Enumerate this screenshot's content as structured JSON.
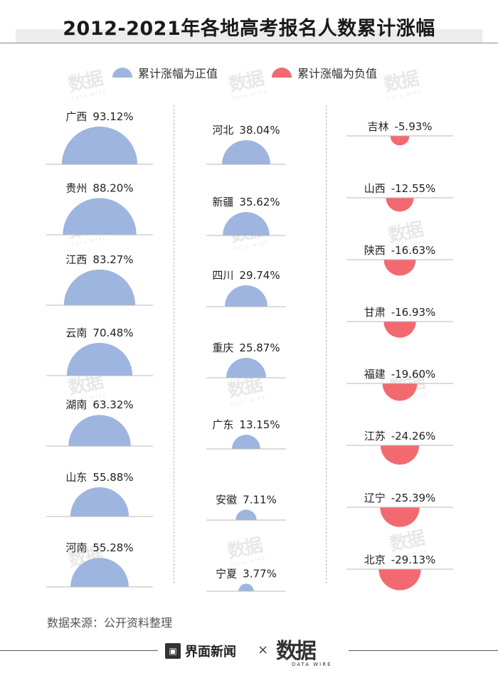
{
  "title": "2012-2021年各地高考报名人数累计涨幅",
  "legend": {
    "positive_label": "累计涨幅为正值",
    "negative_label": "累计涨幅为负值"
  },
  "colors": {
    "positive": "#9db5df",
    "negative": "#f26a6f",
    "baseline": "#b9b9b9"
  },
  "watermark_text": "数据",
  "watermark_sub": "DATA WIRE",
  "source": "数据来源：公开资料整理",
  "footer": {
    "brand_name": "界面新闻",
    "separator": "×",
    "partner_name": "数据",
    "partner_sub": "DATA WIRE"
  },
  "chart_data": {
    "type": "semicircle-area",
    "unit": "%",
    "columns": [
      [
        {
          "region": "广西",
          "value": 93.12,
          "label": "93.12%"
        },
        {
          "region": "贵州",
          "value": 88.2,
          "label": "88.20%"
        },
        {
          "region": "江西",
          "value": 83.27,
          "label": "83.27%"
        },
        {
          "region": "云南",
          "value": 70.48,
          "label": "70.48%"
        },
        {
          "region": "湖南",
          "value": 63.32,
          "label": "63.32%"
        },
        {
          "region": "山东",
          "value": 55.88,
          "label": "55.88%"
        },
        {
          "region": "河南",
          "value": 55.28,
          "label": "55.28%"
        }
      ],
      [
        {
          "region": "河北",
          "value": 38.04,
          "label": "38.04%"
        },
        {
          "region": "新疆",
          "value": 35.62,
          "label": "35.62%"
        },
        {
          "region": "四川",
          "value": 29.74,
          "label": "29.74%"
        },
        {
          "region": "重庆",
          "value": 25.87,
          "label": "25.87%"
        },
        {
          "region": "广东",
          "value": 13.15,
          "label": "13.15%"
        },
        {
          "region": "安徽",
          "value": 7.11,
          "label": "7.11%"
        },
        {
          "region": "宁夏",
          "value": 3.77,
          "label": "3.77%"
        }
      ],
      [
        {
          "region": "吉林",
          "value": -5.93,
          "label": "-5.93%"
        },
        {
          "region": "山西",
          "value": -12.55,
          "label": "-12.55%"
        },
        {
          "region": "陕西",
          "value": -16.63,
          "label": "-16.63%"
        },
        {
          "region": "甘肃",
          "value": -16.93,
          "label": "-16.93%"
        },
        {
          "region": "福建",
          "value": -19.6,
          "label": "-19.60%"
        },
        {
          "region": "江苏",
          "value": -24.26,
          "label": "-24.26%"
        },
        {
          "region": "辽宁",
          "value": -25.39,
          "label": "-25.39%"
        },
        {
          "region": "北京",
          "value": -29.13,
          "label": "-29.13%"
        }
      ]
    ]
  }
}
